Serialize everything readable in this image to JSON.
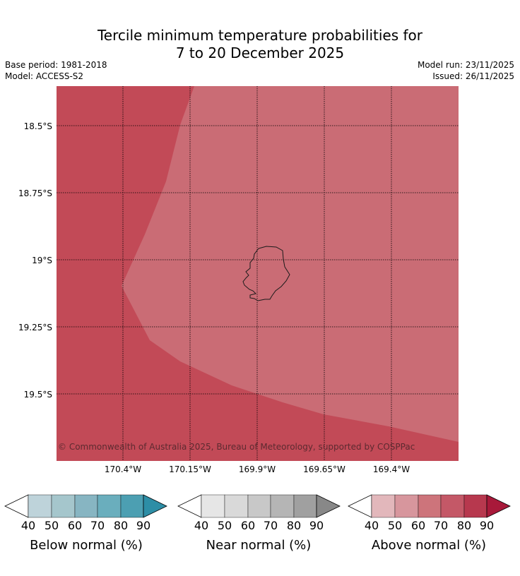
{
  "title_line1": "Tercile minimum temperature probabilities for",
  "title_line2": "7 to 20 December 2025",
  "base_period": "Base period: 1981-2018",
  "model": "Model: ACCESS-S2",
  "model_run": "Model run: 23/11/2025",
  "issued": "Issued: 26/11/2025",
  "copyright": "© Commonwealth of Australia 2025, Bureau of Meteorology, supported by COSPPac",
  "latitude_labels": [
    "18.5°S",
    "18.75°S",
    "19°S",
    "19.25°S",
    "19.5°S"
  ],
  "longitude_labels": [
    "170.4°W",
    "170.15°W",
    "169.9°W",
    "169.65°W",
    "169.4°W"
  ],
  "colorbars": [
    {
      "title": "Below normal (%)",
      "ticks": [
        "40",
        "50",
        "60",
        "70",
        "80",
        "90"
      ],
      "colors": [
        "#bed3da",
        "#a5c6cc",
        "#87b5c2",
        "#6aaebd",
        "#4c9fb2",
        "#2d8ea6"
      ]
    },
    {
      "title": "Near normal (%)",
      "ticks": [
        "40",
        "50",
        "60",
        "70",
        "80",
        "90"
      ],
      "colors": [
        "#e6e6e6",
        "#d9d9d9",
        "#c8c8c8",
        "#b5b5b5",
        "#a0a0a0",
        "#888888"
      ]
    },
    {
      "title": "Above normal (%)",
      "ticks": [
        "40",
        "50",
        "60",
        "70",
        "80",
        "90"
      ],
      "colors": [
        "#e2b7bb",
        "#d7969d",
        "#cd747b",
        "#c45867",
        "#b7384e",
        "#a8193a"
      ]
    }
  ],
  "regions": [
    {
      "category": "Above normal",
      "class": "70-80%",
      "color": "#c24a57"
    },
    {
      "category": "Above normal",
      "class": "60-70%",
      "color": "#ca6c75"
    }
  ]
}
